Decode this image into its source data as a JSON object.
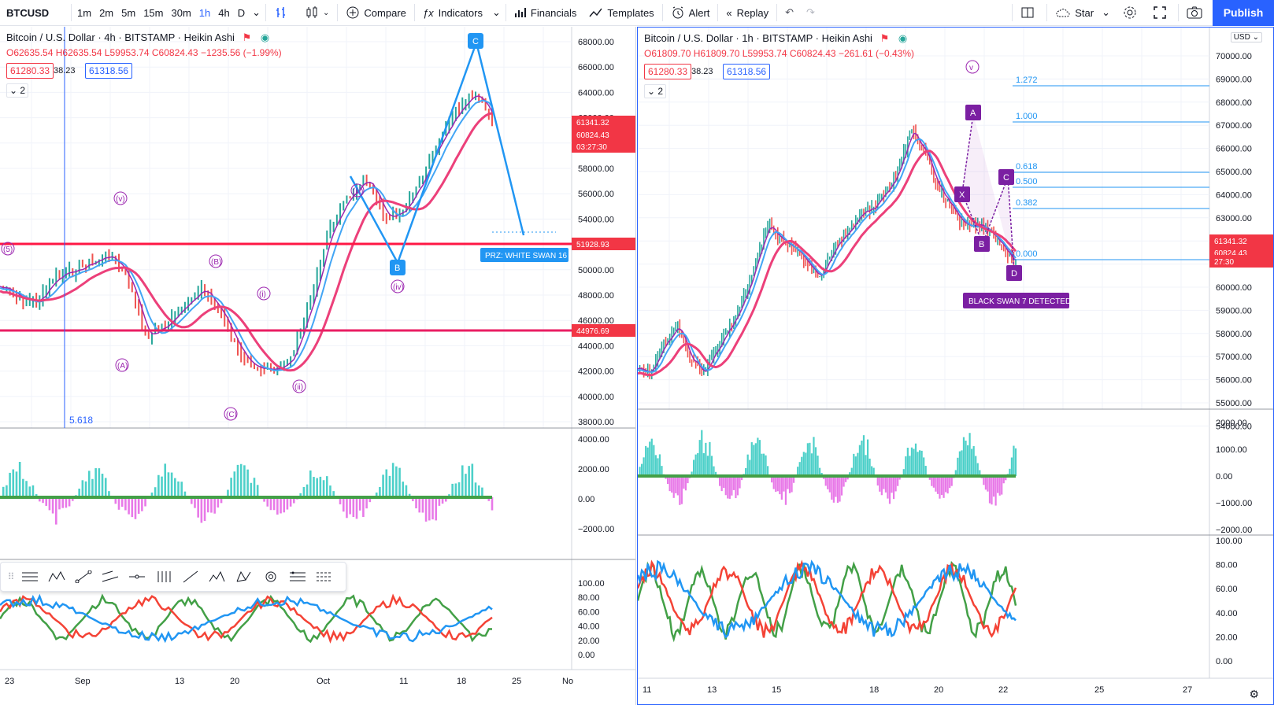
{
  "toolbar": {
    "symbol": "BTCUSD",
    "intervals": [
      "1m",
      "2m",
      "5m",
      "15m",
      "30m",
      "1h",
      "4h",
      "D"
    ],
    "active_interval": "1h",
    "compare": "Compare",
    "indicators": "Indicators",
    "financials": "Financials",
    "templates": "Templates",
    "alert": "Alert",
    "replay": "Replay",
    "layout": "Star",
    "publish": "Publish"
  },
  "left": {
    "title": "Bitcoin / U.S. Dollar · 4h · BITSTAMP · Heikin Ashi",
    "ohlc": {
      "o": "O62635.54",
      "h": "H62635.54",
      "l": "L59953.74",
      "c": "C60824.43",
      "chg": "−1235.56 (−1.99%)"
    },
    "bid": "61280.33",
    "spread": "38.23",
    "ask": "61318.56",
    "collapse": "2",
    "price_axis": [
      "68000.00",
      "66000.00",
      "64000.00",
      "62000.00",
      "60000.00",
      "58000.00",
      "56000.00",
      "54000.00",
      "52000.00",
      "50000.00",
      "48000.00",
      "46000.00",
      "44000.00",
      "42000.00",
      "40000.00",
      "38000.00"
    ],
    "price_tags": {
      "last": "61341.32",
      "close": "60824.43",
      "timer": "03:27:30",
      "line1": "51928.93",
      "line2": "44976.69"
    },
    "osc_axis": [
      "4000.00",
      "2000.00",
      "0.00",
      "−2000.00"
    ],
    "rsi_axis": [
      "100.00",
      "80.00",
      "60.00",
      "40.00",
      "20.00",
      "0.00"
    ],
    "time_axis": [
      "23",
      "Sep",
      "13",
      "20",
      "Oct",
      "11",
      "18",
      "25",
      "No"
    ],
    "fib_label": "5.618",
    "prz": "PRZ: WHITE SWAN 16",
    "waves": [
      "(v)",
      "(i)",
      "(iii)",
      "(iv)",
      "(ii)",
      "(A)",
      "(B)",
      "(C)",
      "(5)"
    ],
    "points": [
      "C",
      "B"
    ]
  },
  "right": {
    "title": "Bitcoin / U.S. Dollar · 1h · BITSTAMP · Heikin Ashi",
    "ohlc": {
      "o": "O61809.70",
      "h": "H61809.70",
      "l": "L59953.74",
      "c": "C60824.43",
      "chg": "−261.61 (−0.43%)"
    },
    "bid": "61280.33",
    "spread": "38.23",
    "ask": "61318.56",
    "collapse": "2",
    "currency": "USD",
    "price_axis": [
      "70000.00",
      "69000.00",
      "68000.00",
      "67000.00",
      "66000.00",
      "65000.00",
      "64000.00",
      "63000.00",
      "62000.00",
      "61000.00",
      "60000.00",
      "59000.00",
      "58000.00",
      "57000.00",
      "56000.00",
      "55000.00",
      "54000.00"
    ],
    "price_tags": {
      "last": "61341.32",
      "close": "60824.43",
      "timer": "27:30"
    },
    "osc_axis": [
      "2000.00",
      "1000.00",
      "0.00",
      "−1000.00",
      "−2000.00"
    ],
    "rsi_axis": [
      "100.00",
      "80.00",
      "60.00",
      "40.00",
      "20.00",
      "0.00"
    ],
    "time_axis": [
      "11",
      "13",
      "15",
      "18",
      "20",
      "22",
      "25",
      "27"
    ],
    "fib": [
      "1.272",
      "1.000",
      "0.618",
      "0.500",
      "0.382",
      "0.000"
    ],
    "black_swan": "BLACK SWAN 7 DETECTED",
    "pattern": [
      "A",
      "X",
      "B",
      "C",
      "D"
    ],
    "wave_v": "v"
  },
  "colors": {
    "buy": "#2196f3",
    "sell": "#f44336",
    "purple": "#9c27b0",
    "teal": "#26c6da",
    "pink": "#e91e63",
    "accent": "#2962ff"
  }
}
